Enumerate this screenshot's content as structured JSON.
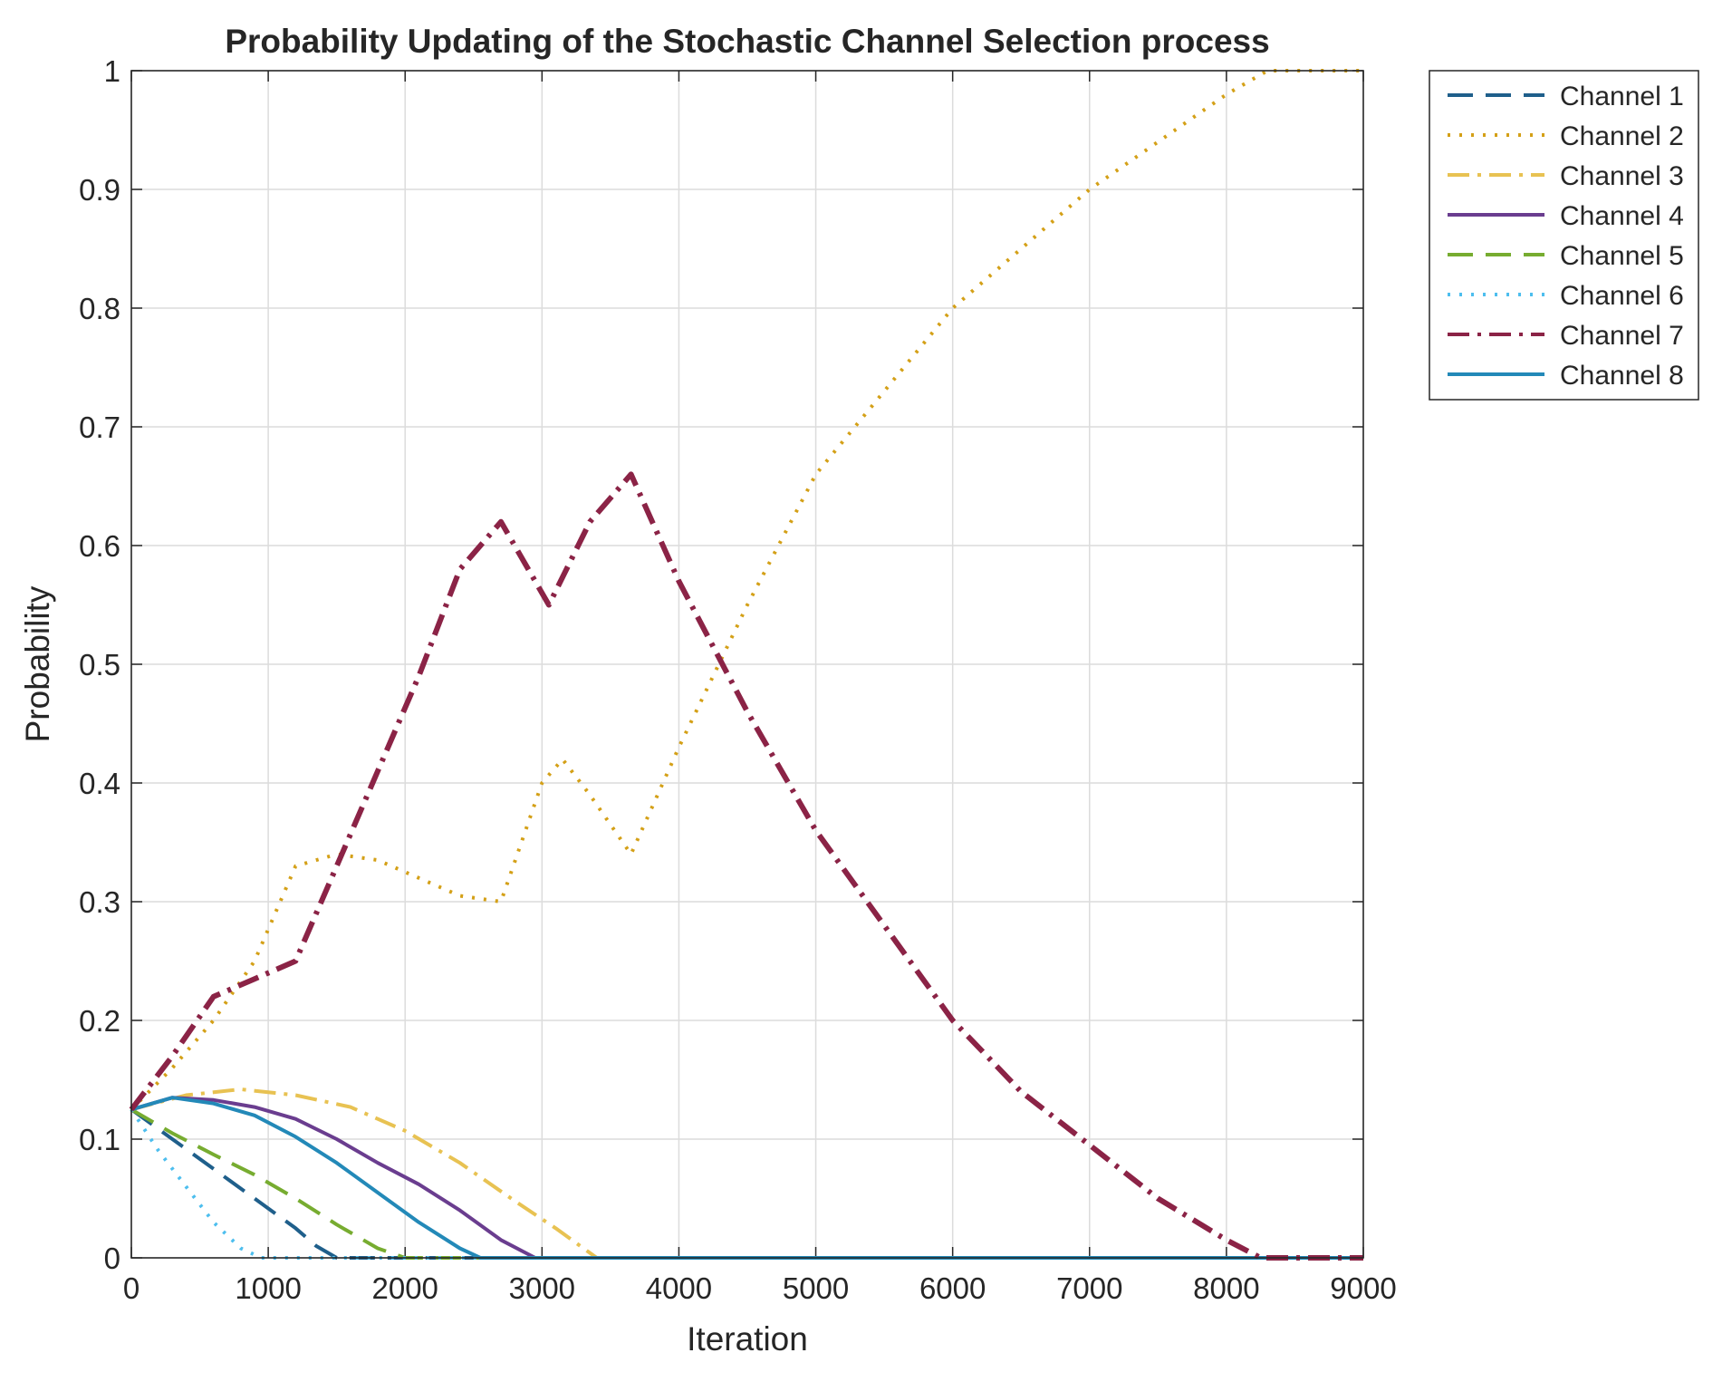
{
  "chart_data": {
    "type": "line",
    "title": "Probability Updating of the Stochastic Channel Selection process",
    "xlabel": "Iteration",
    "ylabel": "Probability",
    "xlim": [
      0,
      9000
    ],
    "ylim": [
      0,
      1
    ],
    "xticks": [
      0,
      1000,
      2000,
      3000,
      4000,
      5000,
      6000,
      7000,
      8000,
      9000
    ],
    "xtick_labels": [
      "0",
      "1000",
      "2000",
      "3000",
      "4000",
      "5000",
      "6000",
      "7000",
      "8000",
      "9000"
    ],
    "yticks": [
      0,
      0.1,
      0.2,
      0.3,
      0.4,
      0.5,
      0.6,
      0.7,
      0.8,
      0.9,
      1
    ],
    "ytick_labels": [
      "0",
      "0.1",
      "0.2",
      "0.3",
      "0.4",
      "0.5",
      "0.6",
      "0.7",
      "0.8",
      "0.9",
      "1"
    ],
    "grid": true,
    "legend_position": "outside-top-right",
    "series": [
      {
        "name": "Channel 1",
        "color": "#1f5f8b",
        "style": "dashed",
        "x": [
          0,
          300,
          600,
          900,
          1200,
          1350,
          1500,
          9000
        ],
        "y": [
          0.125,
          0.1,
          0.075,
          0.05,
          0.025,
          0.01,
          0,
          0
        ]
      },
      {
        "name": "Channel 2",
        "color": "#d4a017",
        "style": "dotted",
        "x": [
          0,
          300,
          600,
          900,
          1200,
          1500,
          1800,
          2100,
          2400,
          2700,
          3000,
          3150,
          3350,
          3650,
          4000,
          4500,
          5000,
          5500,
          6000,
          6500,
          7000,
          7500,
          8000,
          8300,
          8500,
          9000
        ],
        "y": [
          0.125,
          0.16,
          0.2,
          0.25,
          0.33,
          0.34,
          0.335,
          0.32,
          0.305,
          0.3,
          0.4,
          0.42,
          0.39,
          0.34,
          0.43,
          0.55,
          0.66,
          0.73,
          0.8,
          0.85,
          0.9,
          0.94,
          0.98,
          1,
          1,
          1
        ]
      },
      {
        "name": "Channel 3",
        "color": "#e8c252",
        "style": "dashdot",
        "x": [
          0,
          400,
          800,
          1200,
          1600,
          2000,
          2400,
          2800,
          3100,
          3400,
          9000
        ],
        "y": [
          0.125,
          0.137,
          0.142,
          0.137,
          0.127,
          0.107,
          0.08,
          0.048,
          0.025,
          0,
          0
        ]
      },
      {
        "name": "Channel 4",
        "color": "#6a3d8f",
        "style": "solid",
        "x": [
          0,
          300,
          600,
          900,
          1200,
          1500,
          1800,
          2100,
          2400,
          2700,
          2950,
          9000
        ],
        "y": [
          0.125,
          0.135,
          0.133,
          0.127,
          0.117,
          0.1,
          0.08,
          0.062,
          0.04,
          0.015,
          0,
          0
        ]
      },
      {
        "name": "Channel 5",
        "color": "#77ac30",
        "style": "dashed",
        "x": [
          0,
          300,
          600,
          900,
          1200,
          1500,
          1800,
          2000,
          9000
        ],
        "y": [
          0.125,
          0.105,
          0.087,
          0.07,
          0.05,
          0.028,
          0.008,
          0,
          0
        ]
      },
      {
        "name": "Channel 6",
        "color": "#4dbeee",
        "style": "dotted",
        "x": [
          0,
          200,
          400,
          600,
          800,
          950,
          9000
        ],
        "y": [
          0.125,
          0.09,
          0.06,
          0.03,
          0.008,
          0,
          0
        ]
      },
      {
        "name": "Channel 7",
        "color": "#8b2346",
        "style": "dashdot",
        "x": [
          0,
          300,
          600,
          900,
          1200,
          1500,
          1800,
          2100,
          2400,
          2700,
          3050,
          3350,
          3650,
          4000,
          4500,
          5000,
          5500,
          6000,
          6500,
          7000,
          7500,
          8000,
          8250,
          8500,
          9000
        ],
        "y": [
          0.125,
          0.17,
          0.22,
          0.235,
          0.25,
          0.33,
          0.41,
          0.49,
          0.58,
          0.62,
          0.55,
          0.62,
          0.66,
          0.57,
          0.46,
          0.36,
          0.28,
          0.2,
          0.14,
          0.095,
          0.05,
          0.015,
          0,
          0,
          0
        ]
      },
      {
        "name": "Channel 8",
        "color": "#2389b8",
        "style": "solid",
        "x": [
          0,
          300,
          600,
          900,
          1200,
          1500,
          1800,
          2100,
          2400,
          2550,
          9000
        ],
        "y": [
          0.125,
          0.135,
          0.13,
          0.12,
          0.102,
          0.08,
          0.055,
          0.03,
          0.008,
          0,
          0
        ]
      }
    ]
  }
}
